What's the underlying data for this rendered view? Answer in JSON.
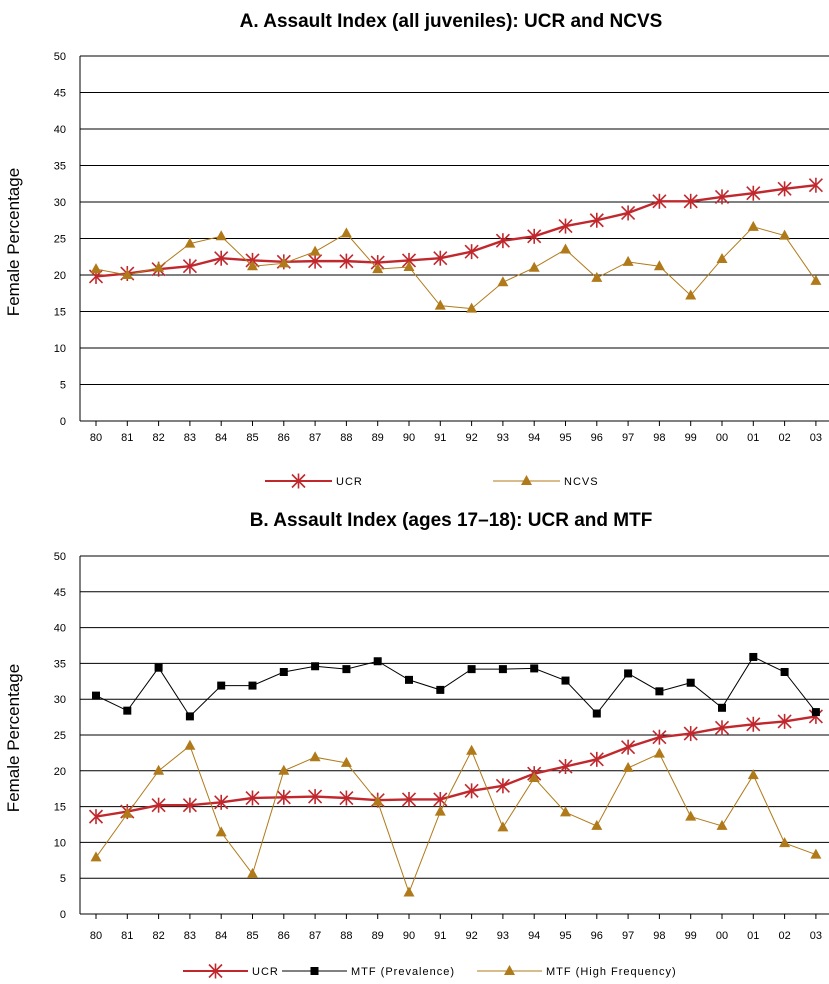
{
  "chart_data": [
    {
      "type": "line",
      "title": "A. Assault Index (all juveniles): UCR and NCVS",
      "ylabel": "Female Percentage",
      "xlabel": "",
      "ylim": [
        0,
        50
      ],
      "yticks": [
        0,
        5,
        10,
        15,
        20,
        25,
        30,
        35,
        40,
        45,
        50
      ],
      "grid": true,
      "legend_position": "bottom",
      "categories": [
        "80",
        "81",
        "82",
        "83",
        "84",
        "85",
        "86",
        "87",
        "88",
        "89",
        "90",
        "91",
        "92",
        "93",
        "94",
        "95",
        "96",
        "97",
        "98",
        "99",
        "00",
        "01",
        "02",
        "03"
      ],
      "series": [
        {
          "name": "UCR",
          "color": "#c0282d",
          "marker": "star",
          "values": [
            19.8,
            20.2,
            20.8,
            21.2,
            22.3,
            22.0,
            21.8,
            21.9,
            21.9,
            21.7,
            22.0,
            22.3,
            23.2,
            24.7,
            25.3,
            26.7,
            27.5,
            28.5,
            30.1,
            30.1,
            30.7,
            31.2,
            31.8,
            32.3
          ]
        },
        {
          "name": "NCVS",
          "color": "#b07a1a",
          "marker": "triangle",
          "values": [
            20.8,
            20.0,
            21.0,
            24.3,
            25.3,
            21.2,
            21.6,
            23.2,
            25.7,
            20.8,
            21.1,
            15.8,
            15.4,
            19.0,
            21.0,
            23.5,
            19.6,
            21.8,
            21.2,
            17.2,
            22.2,
            26.6,
            25.4,
            19.2
          ]
        }
      ]
    },
    {
      "type": "line",
      "title": "B. Assault Index (ages 17–18): UCR and MTF",
      "ylabel": "Female Percentage",
      "xlabel": "",
      "ylim": [
        0,
        50
      ],
      "yticks": [
        0,
        5,
        10,
        15,
        20,
        25,
        30,
        35,
        40,
        45,
        50
      ],
      "grid": true,
      "legend_position": "bottom",
      "categories": [
        "80",
        "81",
        "82",
        "83",
        "84",
        "85",
        "86",
        "87",
        "88",
        "89",
        "90",
        "91",
        "92",
        "93",
        "94",
        "95",
        "96",
        "97",
        "98",
        "99",
        "00",
        "01",
        "02",
        "03"
      ],
      "series": [
        {
          "name": "UCR",
          "color": "#c0282d",
          "marker": "star",
          "values": [
            13.6,
            14.3,
            15.2,
            15.2,
            15.6,
            16.2,
            16.3,
            16.4,
            16.2,
            15.9,
            16.0,
            16.0,
            17.2,
            17.9,
            19.6,
            20.6,
            21.6,
            23.3,
            24.7,
            25.2,
            26.0,
            26.5,
            26.9,
            27.6
          ]
        },
        {
          "name": "MTF (Prevalence)",
          "color": "#000000",
          "marker": "square",
          "values": [
            30.5,
            28.4,
            34.4,
            27.6,
            31.9,
            31.9,
            33.8,
            34.6,
            34.2,
            35.3,
            32.7,
            31.3,
            34.2,
            34.2,
            34.3,
            32.6,
            28.0,
            33.6,
            31.1,
            32.3,
            28.8,
            35.9,
            33.8,
            28.2
          ]
        },
        {
          "name": "MTF (High Frequency)",
          "color": "#b07a1a",
          "marker": "triangle",
          "values": [
            7.9,
            14.0,
            20.0,
            23.5,
            11.4,
            5.6,
            20.0,
            21.9,
            21.1,
            15.7,
            3.0,
            14.3,
            22.8,
            12.1,
            19.0,
            14.2,
            12.3,
            20.4,
            22.4,
            13.6,
            12.3,
            19.4,
            9.9,
            8.3
          ]
        }
      ]
    }
  ]
}
